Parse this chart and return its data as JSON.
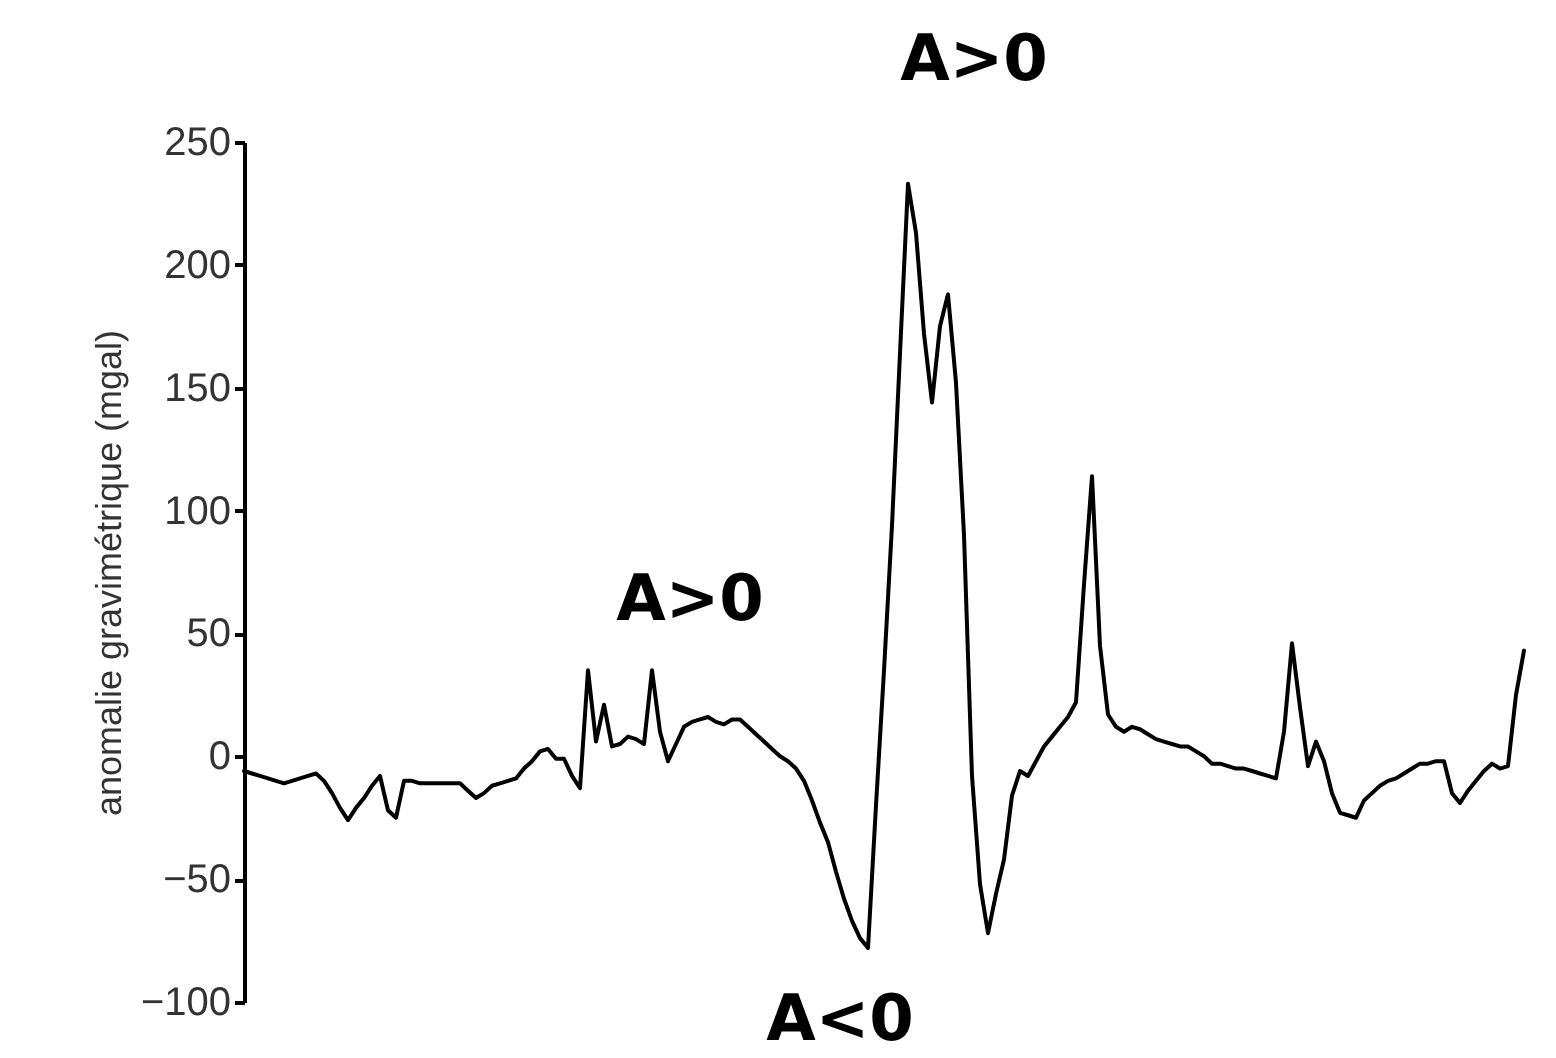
{
  "chart_data": {
    "type": "line",
    "ylabel": "anomalie gravimétrique (mgal)",
    "color": "#000000",
    "ylim": [
      -100,
      250
    ],
    "yticks": [
      -100,
      -50,
      0,
      50,
      100,
      150,
      200,
      250
    ],
    "grid": false,
    "annotations": [
      "A>0",
      "A>0",
      "A<0"
    ],
    "categories": [
      null,
      null,
      null,
      null,
      null,
      null,
      null,
      null,
      null,
      null,
      null,
      null,
      null,
      null,
      null,
      null,
      null,
      null,
      null,
      null,
      null,
      null,
      null,
      null,
      null,
      null,
      null,
      null,
      null,
      null,
      null,
      null,
      null,
      null,
      null,
      null,
      null,
      null,
      null,
      null,
      null,
      null,
      null,
      null,
      null,
      null,
      null,
      null,
      null,
      null,
      null,
      null,
      null,
      null,
      null,
      null,
      null,
      null,
      null,
      null,
      null,
      null,
      null,
      null,
      null,
      null,
      null,
      null,
      null,
      null,
      null,
      null,
      null,
      null,
      null,
      null,
      null,
      null,
      null,
      null,
      null,
      null,
      null,
      null,
      null,
      null,
      null,
      null,
      null,
      null,
      null,
      null,
      null,
      null,
      null,
      null,
      null,
      null,
      null,
      null,
      null,
      null,
      null,
      null,
      null,
      null,
      null,
      null,
      null,
      null,
      null,
      null,
      null,
      null,
      null,
      null,
      null,
      null,
      null,
      null,
      null,
      null,
      null,
      null,
      null,
      null,
      null,
      null,
      null,
      null,
      null,
      null,
      null,
      null,
      null,
      null,
      null,
      null,
      null,
      null,
      null,
      null,
      null,
      null,
      null,
      null,
      null,
      null,
      null,
      null,
      null,
      null,
      null,
      null,
      null,
      null,
      null,
      null,
      null,
      null,
      null
    ],
    "values": [
      -6,
      -7,
      -8,
      -9,
      -10,
      -11,
      -10,
      -9,
      -8,
      -7,
      -10,
      -15,
      -21,
      -26,
      -21,
      -17,
      -12,
      -8,
      -22,
      -25,
      -10,
      -10,
      -11,
      -11,
      -11,
      -11,
      -11,
      -11,
      -14,
      -17,
      -15,
      -12,
      -11,
      -10,
      -9,
      -5,
      -2,
      2,
      3,
      -1,
      -1,
      -8,
      -13,
      35,
      6,
      21,
      4,
      5,
      8,
      7,
      5,
      35,
      10,
      -2,
      5,
      12,
      14,
      15,
      16,
      14,
      13,
      15,
      15,
      12,
      9,
      6,
      3,
      0,
      -2,
      -5,
      -10,
      -18,
      -27,
      -35,
      -47,
      -58,
      -67,
      -74,
      -78,
      -20,
      35,
      94,
      164,
      233,
      213,
      172,
      144,
      175,
      188,
      152,
      90,
      -8,
      -52,
      -72,
      -56,
      -42,
      -16,
      -6,
      -8,
      -2,
      4,
      8,
      12,
      16,
      22,
      70,
      114,
      45,
      17,
      12,
      10,
      12,
      11,
      9,
      7,
      6,
      5,
      4,
      4,
      2,
      0,
      -3,
      -3,
      -4,
      -5,
      -5,
      -6,
      -7,
      -8,
      -9,
      10,
      46,
      20,
      -4,
      6,
      -2,
      -15,
      -23,
      -24,
      -25,
      -18,
      -15,
      -12,
      -10,
      -9,
      -7,
      -5,
      -3,
      -3,
      -2,
      -2,
      -15,
      -19,
      -14,
      -10,
      -6,
      -3,
      -5,
      -4,
      25,
      43
    ]
  }
}
